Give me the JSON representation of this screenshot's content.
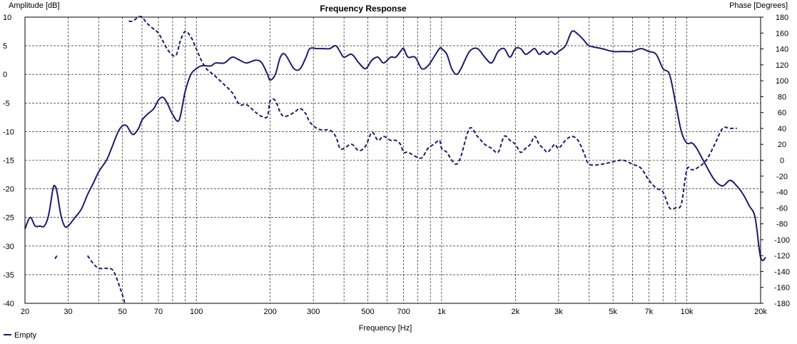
{
  "chart_data": {
    "type": "line",
    "title": "Frequency Response",
    "xlabel": "Frequency [Hz]",
    "ylabel_left": "Amplitude [dB]",
    "ylabel_right": "Phase [Degrees]",
    "x_scale": "log",
    "xlim": [
      20,
      20000
    ],
    "ylim_left": [
      -40,
      10
    ],
    "ylim_right": [
      -180,
      180
    ],
    "grid": true,
    "legend_position": "bottom-left",
    "x_tick_labels": [
      "20",
      "30",
      "50",
      "70",
      "100",
      "200",
      "300",
      "500",
      "700",
      "1k",
      "2k",
      "3k",
      "5k",
      "7k",
      "10k",
      "20k"
    ],
    "x_tick_values": [
      20,
      30,
      50,
      70,
      100,
      200,
      300,
      500,
      700,
      1000,
      2000,
      3000,
      5000,
      7000,
      10000,
      20000
    ],
    "x_minor_grid": [
      40,
      60,
      80,
      90,
      400,
      600,
      800,
      900,
      4000,
      6000,
      8000,
      9000
    ],
    "y_left_ticks": [
      10,
      5,
      0,
      -5,
      -10,
      -15,
      -20,
      -25,
      -30,
      -35,
      -40
    ],
    "y_right_ticks": [
      180,
      160,
      140,
      120,
      100,
      80,
      60,
      40,
      20,
      0,
      -20,
      -40,
      -60,
      -80,
      -100,
      -120,
      -140,
      -160,
      -180
    ],
    "series": [
      {
        "name": "Empty",
        "axis": "left",
        "style": "solid",
        "color": "#1c1c6e",
        "points": [
          [
            20,
            -27
          ],
          [
            21,
            -25
          ],
          [
            22,
            -26.5
          ],
          [
            23,
            -26.5
          ],
          [
            24,
            -26.5
          ],
          [
            25,
            -24.5
          ],
          [
            26,
            -20
          ],
          [
            26.5,
            -19.5
          ],
          [
            27,
            -20.5
          ],
          [
            28,
            -24.5
          ],
          [
            29,
            -26.5
          ],
          [
            30,
            -26.5
          ],
          [
            32,
            -25
          ],
          [
            34,
            -23.5
          ],
          [
            36,
            -21
          ],
          [
            38,
            -19
          ],
          [
            40,
            -17
          ],
          [
            43,
            -15
          ],
          [
            45,
            -13
          ],
          [
            48,
            -10
          ],
          [
            50,
            -9
          ],
          [
            52,
            -9
          ],
          [
            55,
            -10.5
          ],
          [
            58,
            -9.5
          ],
          [
            60,
            -8
          ],
          [
            63,
            -7
          ],
          [
            67,
            -6
          ],
          [
            70,
            -4.5
          ],
          [
            73,
            -4
          ],
          [
            76,
            -5
          ],
          [
            80,
            -7
          ],
          [
            85,
            -8
          ],
          [
            90,
            -3
          ],
          [
            95,
            0
          ],
          [
            100,
            1
          ],
          [
            105,
            1.5
          ],
          [
            110,
            1.5
          ],
          [
            115,
            1.5
          ],
          [
            120,
            2
          ],
          [
            130,
            2
          ],
          [
            140,
            3
          ],
          [
            150,
            2.5
          ],
          [
            160,
            2
          ],
          [
            175,
            2.5
          ],
          [
            185,
            2
          ],
          [
            195,
            0
          ],
          [
            200,
            -1
          ],
          [
            210,
            0
          ],
          [
            220,
            3
          ],
          [
            230,
            3.5
          ],
          [
            250,
            1
          ],
          [
            265,
            1
          ],
          [
            280,
            3
          ],
          [
            290,
            4.5
          ],
          [
            310,
            4.5
          ],
          [
            330,
            4.5
          ],
          [
            350,
            4.5
          ],
          [
            370,
            5
          ],
          [
            385,
            4
          ],
          [
            400,
            3
          ],
          [
            430,
            3.5
          ],
          [
            460,
            2
          ],
          [
            490,
            1
          ],
          [
            520,
            2.5
          ],
          [
            550,
            3
          ],
          [
            580,
            2
          ],
          [
            620,
            3
          ],
          [
            650,
            3
          ],
          [
            680,
            4
          ],
          [
            700,
            4.5
          ],
          [
            730,
            3
          ],
          [
            780,
            3
          ],
          [
            830,
            1
          ],
          [
            880,
            1.5
          ],
          [
            930,
            3
          ],
          [
            980,
            4.5
          ],
          [
            1000,
            4.5
          ],
          [
            1050,
            3.5
          ],
          [
            1100,
            1
          ],
          [
            1150,
            0
          ],
          [
            1200,
            1
          ],
          [
            1300,
            4
          ],
          [
            1400,
            4.5
          ],
          [
            1500,
            3
          ],
          [
            1600,
            2
          ],
          [
            1700,
            4
          ],
          [
            1800,
            4.5
          ],
          [
            1900,
            3
          ],
          [
            2000,
            4.5
          ],
          [
            2100,
            4.5
          ],
          [
            2200,
            3.5
          ],
          [
            2300,
            4
          ],
          [
            2400,
            4.5
          ],
          [
            2500,
            3.5
          ],
          [
            2600,
            4
          ],
          [
            2700,
            3.5
          ],
          [
            2800,
            4
          ],
          [
            2900,
            3.5
          ],
          [
            3000,
            4
          ],
          [
            3200,
            5
          ],
          [
            3400,
            7.5
          ],
          [
            3600,
            7
          ],
          [
            3800,
            6
          ],
          [
            4000,
            5
          ],
          [
            4500,
            4.5
          ],
          [
            5000,
            4
          ],
          [
            5500,
            4
          ],
          [
            6000,
            4
          ],
          [
            6500,
            4.5
          ],
          [
            7000,
            4
          ],
          [
            7500,
            3.5
          ],
          [
            8000,
            1
          ],
          [
            8500,
            0
          ],
          [
            9000,
            -5
          ],
          [
            9500,
            -10
          ],
          [
            10000,
            -12
          ],
          [
            10500,
            -12
          ],
          [
            11000,
            -13
          ],
          [
            12000,
            -16
          ],
          [
            13000,
            -18.5
          ],
          [
            14000,
            -19.5
          ],
          [
            15000,
            -18.5
          ],
          [
            16000,
            -19.5
          ],
          [
            17000,
            -21
          ],
          [
            18000,
            -23
          ],
          [
            19000,
            -25
          ],
          [
            20000,
            -32
          ],
          [
            21000,
            -32
          ]
        ]
      },
      {
        "name": "Phase",
        "axis": "right",
        "style": "dashed",
        "color": "#1c1c6e",
        "segments": [
          [
            [
              26.5,
              -124
            ],
            [
              27,
              -120
            ]
          ],
          [
            [
              36,
              -120
            ],
            [
              38,
              -130
            ],
            [
              40,
              -136
            ],
            [
              43,
              -136
            ],
            [
              46,
              -140
            ],
            [
              50,
              -170
            ],
            [
              51,
              -180
            ]
          ],
          [
            [
              53,
              175
            ],
            [
              55,
              175
            ],
            [
              58,
              180
            ],
            [
              60,
              180
            ],
            [
              63,
              172
            ],
            [
              67,
              165
            ],
            [
              70,
              160
            ],
            [
              73,
              150
            ],
            [
              76,
              140
            ],
            [
              80,
              132
            ],
            [
              83,
              133
            ],
            [
              86,
              150
            ],
            [
              90,
              162
            ],
            [
              95,
              155
            ],
            [
              100,
              140
            ],
            [
              105,
              125
            ],
            [
              110,
              115
            ],
            [
              115,
              110
            ],
            [
              120,
              105
            ],
            [
              130,
              95
            ],
            [
              140,
              85
            ],
            [
              150,
              70
            ],
            [
              160,
              70
            ],
            [
              175,
              60
            ],
            [
              185,
              55
            ],
            [
              195,
              55
            ],
            [
              200,
              75
            ],
            [
              210,
              75
            ],
            [
              220,
              60
            ],
            [
              230,
              55
            ],
            [
              250,
              60
            ],
            [
              265,
              65
            ],
            [
              280,
              58
            ],
            [
              290,
              48
            ],
            [
              310,
              40
            ],
            [
              330,
              38
            ],
            [
              350,
              38
            ],
            [
              370,
              30
            ],
            [
              385,
              15
            ],
            [
              400,
              15
            ],
            [
              430,
              20
            ],
            [
              460,
              12
            ],
            [
              490,
              18
            ],
            [
              520,
              35
            ],
            [
              550,
              25
            ],
            [
              580,
              30
            ],
            [
              620,
              25
            ],
            [
              650,
              25
            ],
            [
              680,
              20
            ],
            [
              700,
              10
            ],
            [
              730,
              10
            ],
            [
              780,
              5
            ],
            [
              830,
              3
            ],
            [
              880,
              15
            ],
            [
              930,
              20
            ],
            [
              980,
              25
            ],
            [
              1000,
              15
            ],
            [
              1050,
              10
            ],
            [
              1100,
              0
            ],
            [
              1150,
              -5
            ],
            [
              1200,
              5
            ],
            [
              1300,
              40
            ],
            [
              1400,
              30
            ],
            [
              1500,
              20
            ],
            [
              1600,
              15
            ],
            [
              1700,
              10
            ],
            [
              1800,
              30
            ],
            [
              1900,
              25
            ],
            [
              2000,
              20
            ],
            [
              2100,
              10
            ],
            [
              2200,
              15
            ],
            [
              2300,
              20
            ],
            [
              2400,
              30
            ],
            [
              2500,
              20
            ],
            [
              2600,
              15
            ],
            [
              2700,
              10
            ],
            [
              2800,
              15
            ],
            [
              2900,
              20
            ],
            [
              3000,
              15
            ],
            [
              3200,
              25
            ],
            [
              3400,
              30
            ],
            [
              3600,
              25
            ],
            [
              3800,
              10
            ],
            [
              4000,
              -5
            ],
            [
              4500,
              -5
            ],
            [
              5000,
              -2
            ],
            [
              5500,
              0
            ],
            [
              6000,
              -5
            ],
            [
              6500,
              -10
            ],
            [
              7000,
              -25
            ],
            [
              7500,
              -35
            ],
            [
              8000,
              -40
            ],
            [
              8500,
              -60
            ],
            [
              9000,
              -60
            ],
            [
              9500,
              -55
            ],
            [
              10000,
              -12
            ],
            [
              10500,
              -12
            ],
            [
              11000,
              -10
            ],
            [
              12000,
              0
            ],
            [
              13000,
              20
            ],
            [
              14000,
              40
            ],
            [
              15000,
              40
            ],
            [
              16000,
              40
            ]
          ]
        ]
      }
    ]
  },
  "legend": {
    "items": [
      {
        "label": "Empty",
        "color": "#1c1c6e"
      }
    ]
  }
}
